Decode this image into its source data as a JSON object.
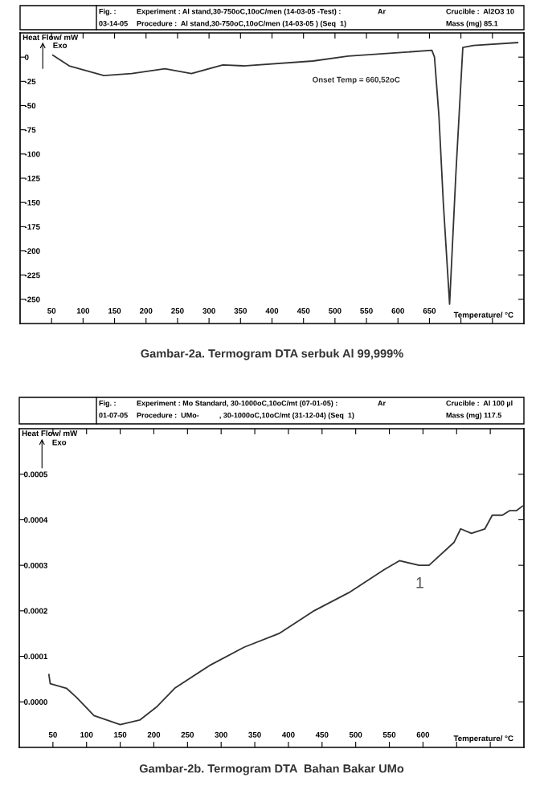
{
  "chart_data": [
    {
      "type": "line",
      "title": "Gambar-2a. Termogram DTA serbuk Al 99,999%",
      "xlabel": "Temperature/ °C",
      "ylabel": "Heat Flow/ mW",
      "x": [
        52,
        78,
        133,
        177,
        230,
        272,
        322,
        355,
        465,
        521,
        654,
        658,
        665,
        672,
        682,
        692,
        703,
        720,
        790
      ],
      "series": [
        {
          "color": "#333333",
          "values": [
            2,
            -9,
            -19,
            -17,
            -12,
            -17,
            -8,
            -9,
            -4,
            1,
            7,
            0,
            -60,
            -150,
            -255,
            -120,
            10,
            12,
            15
          ]
        }
      ],
      "xlim": [
        0,
        800
      ],
      "ylim": [
        -275,
        25
      ],
      "xticks": [
        50,
        100,
        150,
        200,
        250,
        300,
        350,
        400,
        450,
        500,
        550,
        600,
        650,
        {
          "value": 700,
          "label": null
        },
        {
          "value": 750,
          "label": null
        }
      ],
      "yticks": [
        0,
        -25,
        -50,
        -75,
        -100,
        -125,
        -150,
        -175,
        -200,
        -225,
        -250
      ],
      "grid": false,
      "legend": false,
      "annotations": [
        "Fig. :",
        "03-14-05",
        "Experiment : Al stand,30-750oC,10oC/men (14-03-05 -Test) :",
        "Procedure :  Al stand,30-750oC,10oC/men (14-03-05 ) (Seq  1)",
        "Ar",
        "Crucible :  Al2O3 10",
        "Mass (mg) 85.1",
        "Exo",
        "Onset Temp = 660,52oC"
      ]
    },
    {
      "type": "line",
      "title": "Gambar-2b. Termogram DTA  Bahan Bakar UMo",
      "xlabel": "Temperature/ °C",
      "ylabel": "Heat Flow/ mW",
      "x": [
        44,
        46,
        70,
        85,
        111,
        150,
        179,
        205,
        231,
        283,
        334,
        386,
        438,
        490,
        542,
        565,
        594,
        609,
        646,
        656,
        672,
        692,
        703,
        718,
        729,
        739,
        748
      ],
      "series": [
        {
          "color": "#333333",
          "values": [
            6e-05,
            4e-05,
            3e-05,
            1e-05,
            -3e-05,
            -5e-05,
            -4e-05,
            -1e-05,
            3e-05,
            8e-05,
            0.00012,
            0.00015,
            0.0002,
            0.00024,
            0.00029,
            0.00031,
            0.0003,
            0.0003,
            0.00035,
            0.00038,
            0.00037,
            0.00038,
            0.00041,
            0.00041,
            0.00042,
            0.00042,
            0.00043
          ]
        }
      ],
      "xlim": [
        0,
        750
      ],
      "ylim": [
        -0.0001,
        0.0006
      ],
      "xticks": [
        50,
        100,
        150,
        200,
        250,
        300,
        350,
        400,
        450,
        500,
        550,
        600,
        {
          "value": 650,
          "label": null
        },
        {
          "value": 700,
          "label": null
        }
      ],
      "yticks": [
        {
          "value": 0,
          "label": "0.0000"
        },
        {
          "value": 0.0001,
          "label": "0.0001"
        },
        {
          "value": 0.0002,
          "label": "0.0002"
        },
        {
          "value": 0.0003,
          "label": "0.0003"
        },
        {
          "value": 0.0004,
          "label": "0.0004"
        },
        {
          "value": 0.0005,
          "label": "0.0005"
        }
      ],
      "grid": false,
      "legend": false,
      "annotations": [
        "Fig. :",
        "01-07-05",
        "Experiment : Mo Standard, 30-1000oC,10oC/mt (07-01-05) :",
        "Procedure :  UMo-          , 30-1000oC,10oC/mt (31-12-04) (Seq  1)",
        "Ar",
        "Crucible :  Al 100 µl",
        "Mass (mg) 117.5",
        "Exo",
        "1"
      ]
    }
  ]
}
